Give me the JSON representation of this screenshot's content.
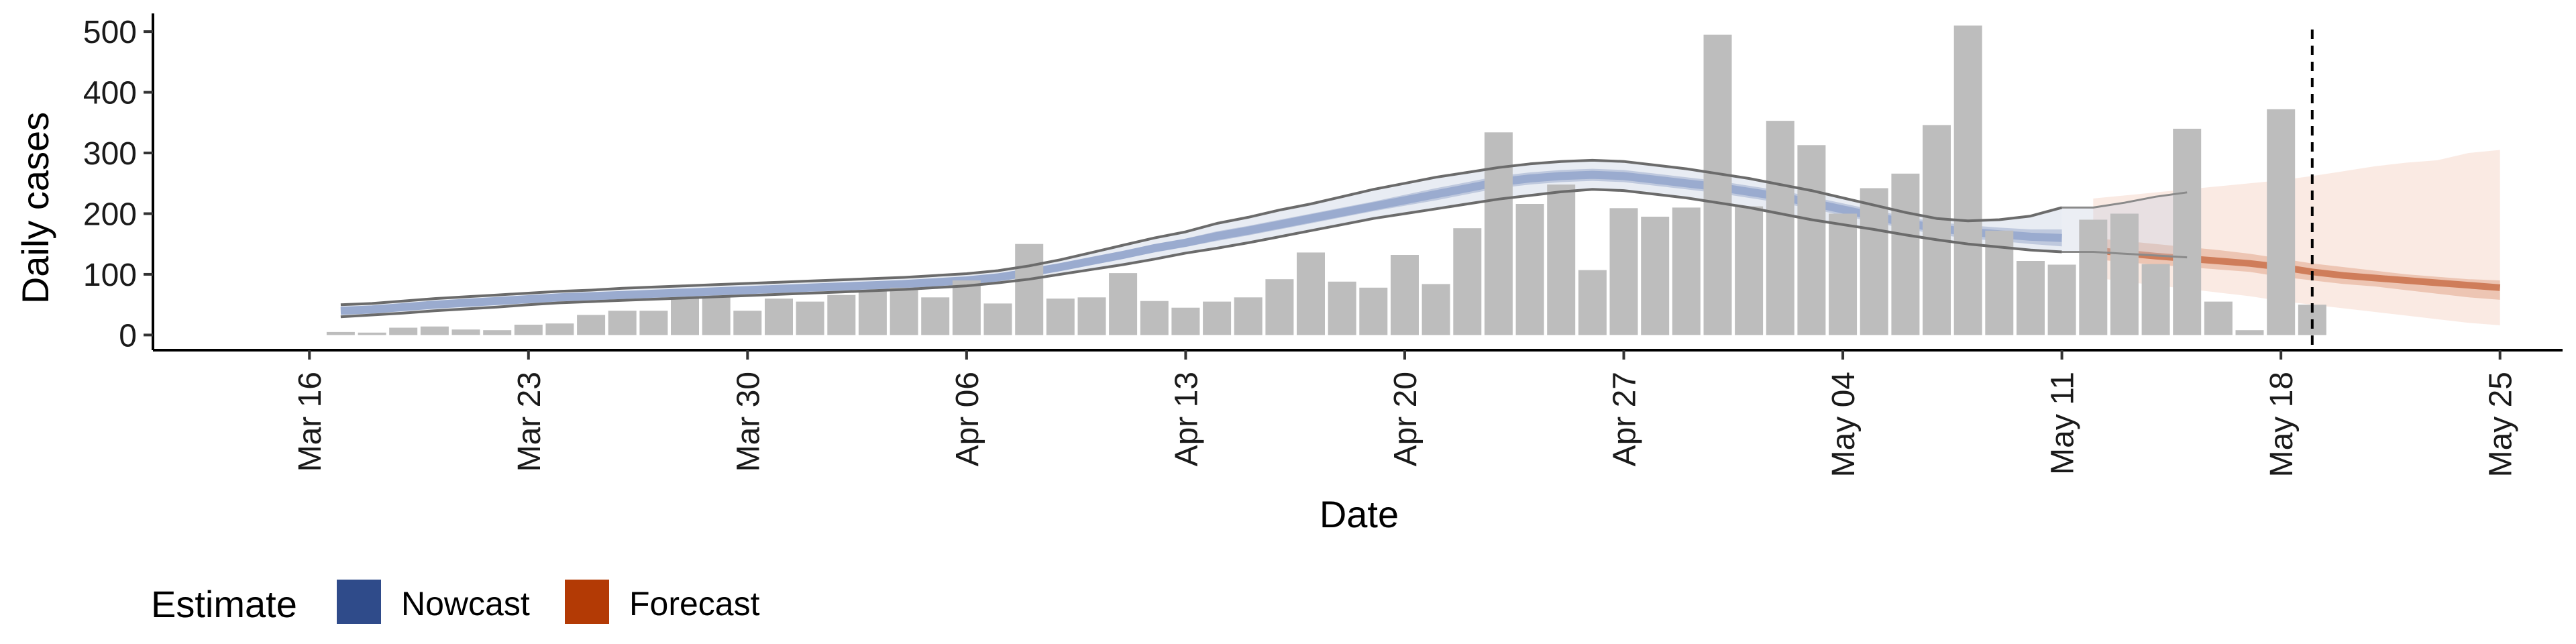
{
  "chart_data": {
    "type": "bar",
    "xlabel": "Date",
    "ylabel": "Daily cases",
    "ylim": [
      -25,
      530
    ],
    "yticks": [
      0,
      100,
      200,
      300,
      400,
      500
    ],
    "xlim": [
      "2020-03-11",
      "2020-05-27"
    ],
    "xticks": [
      {
        "date": "2020-03-16",
        "label": "Mar 16"
      },
      {
        "date": "2020-03-23",
        "label": "Mar 23"
      },
      {
        "date": "2020-03-30",
        "label": "Mar 30"
      },
      {
        "date": "2020-04-06",
        "label": "Apr 06"
      },
      {
        "date": "2020-04-13",
        "label": "Apr 13"
      },
      {
        "date": "2020-04-20",
        "label": "Apr 20"
      },
      {
        "date": "2020-04-27",
        "label": "Apr 27"
      },
      {
        "date": "2020-05-04",
        "label": "May 04"
      },
      {
        "date": "2020-05-11",
        "label": "May 11"
      },
      {
        "date": "2020-05-18",
        "label": "May 18"
      },
      {
        "date": "2020-05-25",
        "label": "May 25"
      }
    ],
    "vline_date": "2020-05-19",
    "grid": false,
    "legend": {
      "title": "Estimate",
      "placement": "bottom-left",
      "entries": [
        {
          "label": "Nowcast",
          "color": "#2f4b8a"
        },
        {
          "label": "Forecast",
          "color": "#b33a05"
        }
      ]
    },
    "bars": {
      "start_date": "2020-03-17",
      "color": "#bdbdbd",
      "values": [
        5,
        4,
        12,
        14,
        9,
        8,
        17,
        19,
        33,
        40,
        40,
        60,
        62,
        40,
        60,
        55,
        66,
        72,
        78,
        62,
        90,
        52,
        150,
        60,
        62,
        102,
        56,
        45,
        55,
        62,
        92,
        136,
        88,
        78,
        132,
        84,
        176,
        334,
        216,
        248,
        107,
        209,
        195,
        210,
        495,
        212,
        353,
        313,
        200,
        242,
        266,
        346,
        510,
        172,
        122,
        116,
        190,
        200,
        117,
        340,
        55,
        8,
        372,
        50
      ]
    },
    "nowcast": {
      "start_date": "2020-03-17",
      "color": "#2f4b8a",
      "median": [
        40,
        42,
        46,
        50,
        53,
        56,
        59,
        62,
        64,
        66,
        68,
        70,
        72,
        74,
        76,
        78,
        80,
        82,
        84,
        87,
        90,
        95,
        103,
        112,
        122,
        132,
        143,
        152,
        163,
        172,
        182,
        192,
        202,
        212,
        222,
        232,
        242,
        252,
        258,
        262,
        264,
        262,
        256,
        250,
        244,
        236,
        228,
        218,
        207,
        196,
        185,
        176,
        170,
        166,
        162,
        160
      ],
      "inner_lo": [
        36,
        38,
        42,
        46,
        49,
        52,
        55,
        58,
        60,
        62,
        64,
        66,
        68,
        70,
        72,
        74,
        76,
        78,
        80,
        83,
        86,
        91,
        98,
        107,
        116,
        126,
        136,
        145,
        155,
        164,
        174,
        184,
        194,
        204,
        213,
        222,
        232,
        242,
        248,
        252,
        254,
        252,
        246,
        240,
        234,
        226,
        218,
        208,
        197,
        186,
        175,
        166,
        159,
        155,
        150,
        146
      ],
      "inner_hi": [
        44,
        46,
        50,
        54,
        57,
        60,
        63,
        66,
        68,
        70,
        72,
        74,
        76,
        78,
        80,
        82,
        84,
        86,
        88,
        91,
        94,
        99,
        108,
        117,
        128,
        138,
        150,
        159,
        171,
        180,
        190,
        200,
        210,
        220,
        231,
        242,
        252,
        262,
        268,
        272,
        274,
        272,
        266,
        260,
        254,
        246,
        238,
        228,
        217,
        206,
        195,
        186,
        181,
        177,
        174,
        174
      ],
      "outer_lo": [
        30,
        33,
        36,
        40,
        43,
        46,
        50,
        53,
        55,
        57,
        59,
        61,
        63,
        65,
        67,
        69,
        71,
        73,
        75,
        78,
        81,
        86,
        92,
        100,
        108,
        116,
        125,
        135,
        143,
        152,
        162,
        172,
        182,
        192,
        200,
        208,
        216,
        224,
        230,
        236,
        240,
        238,
        232,
        226,
        218,
        210,
        200,
        190,
        182,
        174,
        165,
        157,
        150,
        145,
        140,
        137
      ],
      "outer_hi": [
        50,
        52,
        56,
        60,
        63,
        66,
        69,
        72,
        74,
        77,
        79,
        81,
        83,
        85,
        87,
        89,
        91,
        93,
        95,
        98,
        101,
        106,
        114,
        124,
        136,
        148,
        160,
        170,
        184,
        194,
        206,
        216,
        228,
        240,
        250,
        260,
        268,
        276,
        282,
        286,
        288,
        286,
        280,
        274,
        266,
        258,
        248,
        238,
        226,
        214,
        202,
        192,
        188,
        190,
        196,
        210
      ],
      "tail_lo": [
        137,
        134,
        131,
        128
      ],
      "tail_hi": [
        210,
        218,
        228,
        235
      ]
    },
    "forecast": {
      "start_date": "2020-05-12",
      "color": "#b33a05",
      "median": [
        140,
        135,
        130,
        126,
        122,
        118,
        112,
        104,
        98,
        94,
        90,
        86,
        82,
        78
      ],
      "inner_lo": [
        125,
        120,
        116,
        112,
        108,
        104,
        96,
        90,
        84,
        80,
        74,
        68,
        62,
        58
      ],
      "inner_hi": [
        160,
        155,
        150,
        145,
        140,
        134,
        126,
        118,
        112,
        106,
        100,
        96,
        92,
        90
      ],
      "outer_lo": [
        95,
        88,
        82,
        76,
        70,
        64,
        56,
        50,
        44,
        38,
        32,
        26,
        20,
        16
      ],
      "outer_hi": [
        225,
        230,
        235,
        240,
        245,
        250,
        255,
        262,
        270,
        278,
        284,
        288,
        300,
        305
      ]
    }
  }
}
